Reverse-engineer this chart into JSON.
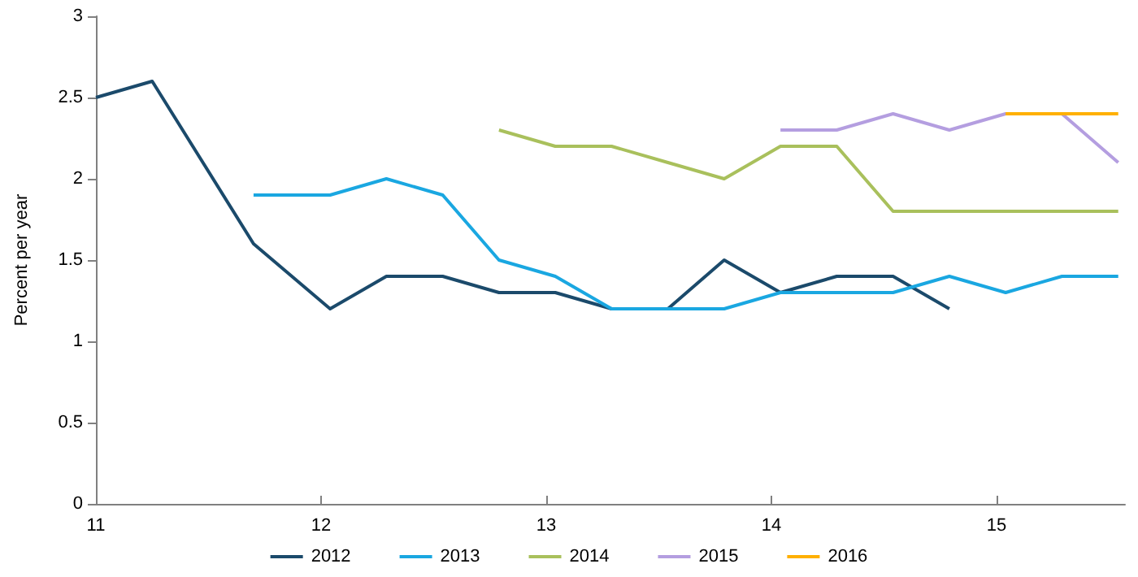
{
  "chart_data": {
    "type": "line",
    "ylabel": "Percent per year",
    "xlim": [
      11,
      15.57
    ],
    "xticks": [
      11,
      12,
      13,
      14,
      15
    ],
    "ylim": [
      0,
      3
    ],
    "yticks": [
      0,
      0.5,
      1,
      1.5,
      2,
      2.5,
      3
    ],
    "grid": false,
    "legend": "bottom",
    "marker": "none",
    "line_style": "solid",
    "series": [
      {
        "name": "2012",
        "color": "#1b4a6b",
        "x": [
          11,
          11.25,
          11.7,
          12.04,
          12.29,
          12.54,
          12.79,
          13.04,
          13.29,
          13.54,
          13.79,
          14.04,
          14.29,
          14.54,
          14.79
        ],
        "values": [
          2.5,
          2.6,
          1.6,
          1.2,
          1.4,
          1.4,
          1.3,
          1.3,
          1.2,
          1.2,
          1.5,
          1.3,
          1.4,
          1.4,
          1.2
        ]
      },
      {
        "name": "2013",
        "color": "#1aa7e1",
        "x": [
          11.7,
          12.04,
          12.29,
          12.54,
          12.79,
          13.04,
          13.29,
          13.54,
          13.79,
          14.04,
          14.29,
          14.54,
          14.79,
          15.04,
          15.29,
          15.54
        ],
        "values": [
          1.9,
          1.9,
          2.0,
          1.9,
          1.5,
          1.4,
          1.2,
          1.2,
          1.2,
          1.3,
          1.3,
          1.3,
          1.4,
          1.3,
          1.4,
          1.4
        ]
      },
      {
        "name": "2014",
        "color": "#a9c05c",
        "x": [
          12.79,
          13.04,
          13.29,
          13.54,
          13.79,
          14.04,
          14.29,
          14.54,
          14.79,
          15.04,
          15.29,
          15.54
        ],
        "values": [
          2.3,
          2.2,
          2.2,
          2.1,
          2.0,
          2.2,
          2.2,
          1.8,
          1.8,
          1.8,
          1.8,
          1.8
        ]
      },
      {
        "name": "2015",
        "color": "#b49ee0",
        "x": [
          14.04,
          14.29,
          14.54,
          14.79,
          15.04,
          15.29,
          15.54
        ],
        "values": [
          2.3,
          2.3,
          2.4,
          2.3,
          2.4,
          2.4,
          2.1
        ]
      },
      {
        "name": "2016",
        "color": "#ffb000",
        "x": [
          15.04,
          15.29,
          15.54
        ],
        "values": [
          2.4,
          2.4,
          2.4
        ]
      }
    ]
  }
}
